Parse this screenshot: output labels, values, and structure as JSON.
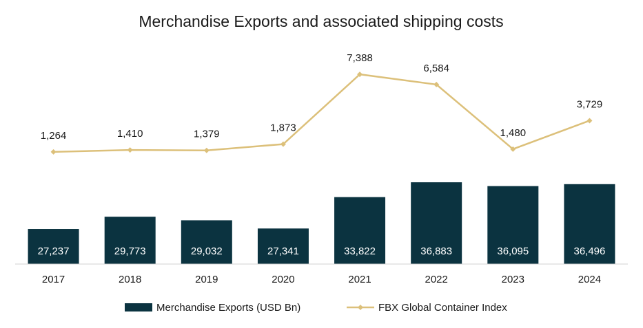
{
  "chart_data": {
    "type": "bar-line",
    "title": "Merchandise Exports and associated shipping costs",
    "categories": [
      "2017",
      "2018",
      "2019",
      "2020",
      "2021",
      "2022",
      "2023",
      "2024"
    ],
    "series": [
      {
        "name": "Merchandise Exports (USD Bn)",
        "type": "bar",
        "color": "#0b3340",
        "axis": "y",
        "values": [
          27237,
          29773,
          29032,
          27341,
          33822,
          36883,
          36095,
          36496
        ],
        "value_labels": [
          "27,237",
          "29,773",
          "29,032",
          "27,341",
          "33,822",
          "36,883",
          "36,095",
          "36,496"
        ]
      },
      {
        "name": "FBX Global Container Index",
        "type": "line",
        "color": "#dcc07a",
        "axis": "y2",
        "values": [
          1264,
          1410,
          1379,
          1873,
          7388,
          6584,
          1480,
          3729
        ],
        "value_labels": [
          "1,264",
          "1,410",
          "1,379",
          "1,873",
          "7,388",
          "6,584",
          "1,480",
          "3,729"
        ]
      }
    ],
    "ylim": [
      20000,
      66000
    ],
    "y2lim": [
      -7600,
      10000
    ],
    "legend": "bottom"
  }
}
